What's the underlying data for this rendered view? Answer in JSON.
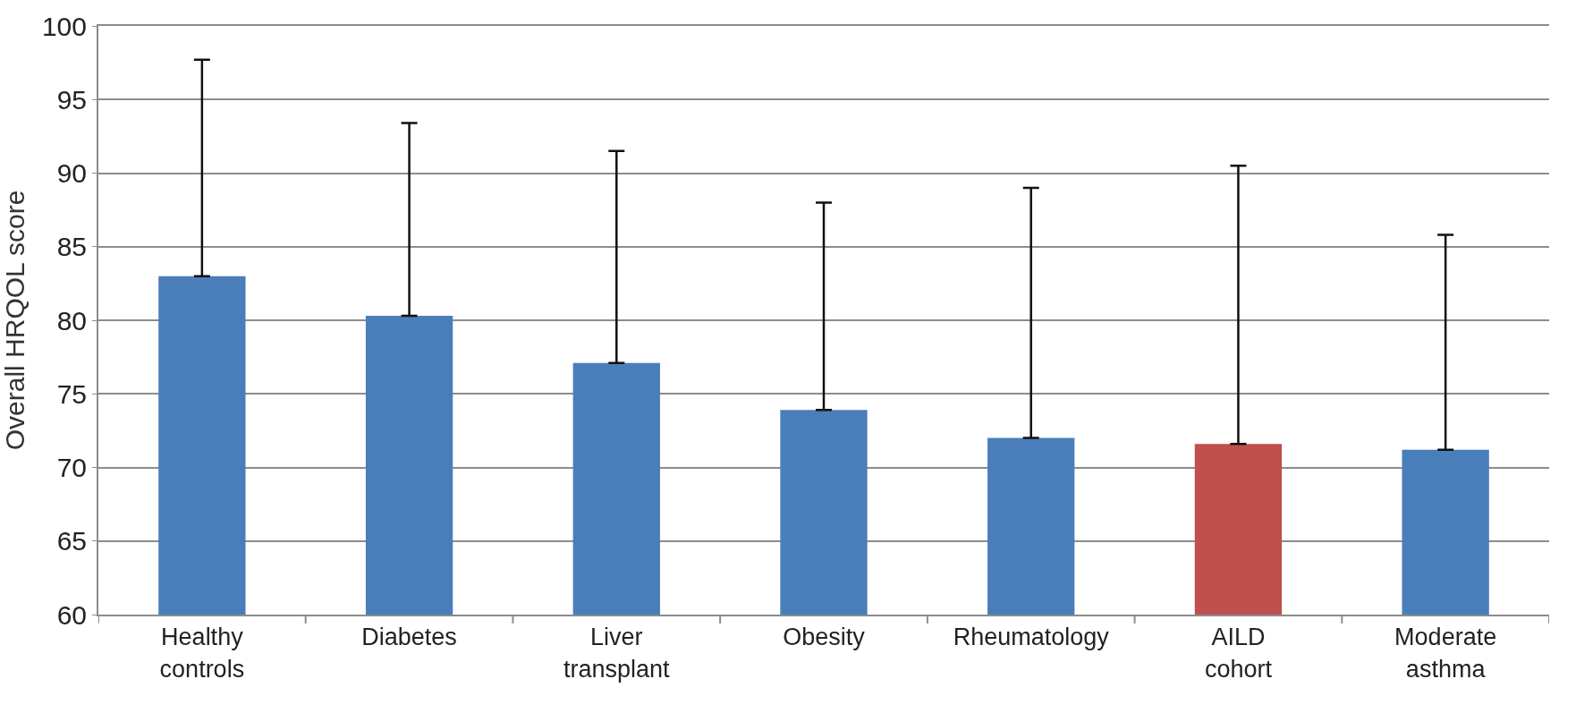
{
  "chart_data": {
    "type": "bar",
    "ylabel": "Overall HRQOL score",
    "categories": [
      "Healthy\ncontrols",
      "Diabetes",
      "Liver\ntransplant",
      "Obesity",
      "Rheumatology",
      "AILD\ncohort",
      "Moderate\nasthma"
    ],
    "values": [
      83.0,
      80.3,
      77.1,
      73.9,
      72.0,
      71.6,
      71.2
    ],
    "colors": [
      "#4a7ebb",
      "#4a7ebb",
      "#4a7ebb",
      "#4a7ebb",
      "#4a7ebb",
      "#c0504d",
      "#4a7ebb"
    ],
    "errors": [
      [
        83.0,
        97.7
      ],
      [
        80.3,
        93.4
      ],
      [
        77.1,
        91.5
      ],
      [
        73.9,
        88.0
      ],
      [
        72.0,
        89.0
      ],
      [
        71.6,
        90.5
      ],
      [
        71.2,
        85.8
      ]
    ],
    "ylim": [
      60,
      100
    ],
    "yticks": [
      60,
      65,
      70,
      75,
      80,
      85,
      90,
      95,
      100
    ],
    "grid": "y"
  }
}
